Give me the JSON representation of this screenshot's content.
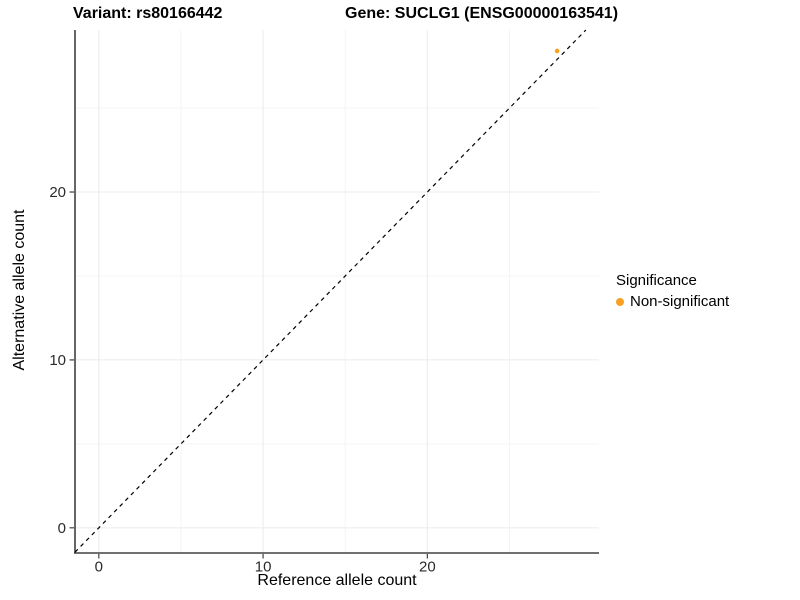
{
  "header": {
    "variant_title": "Variant: rs80166442",
    "gene_title": "Gene: SUCLG1 (ENSG00000163541)"
  },
  "chart_data": {
    "type": "scatter",
    "title": "Variant: rs80166442    Gene: SUCLG1 (ENSG00000163541)",
    "xlabel": "Reference allele count",
    "ylabel": "Alternative allele count",
    "xlim": [
      -1.45,
      30.45
    ],
    "ylim": [
      -1.5,
      29.65
    ],
    "x_ticks": {
      "major": [
        0,
        10,
        20
      ],
      "minor": [
        5,
        15,
        25
      ]
    },
    "y_ticks": {
      "major": [
        0,
        10,
        20
      ],
      "minor": [
        5,
        15,
        25
      ]
    },
    "grid": true,
    "series": [
      {
        "name": "Non-significant",
        "color": "#F8A020",
        "points": [
          {
            "x": 27.9,
            "y": 28.4
          }
        ]
      }
    ],
    "reference_line": {
      "type": "identity",
      "slope": 1,
      "intercept": 0,
      "linetype": "dashed",
      "color": "#000000"
    },
    "legend": {
      "title": "Significance",
      "position": "right",
      "entries": [
        {
          "label": "Non-significant",
          "color": "#F8A020"
        }
      ]
    }
  },
  "colors": {
    "background": "#FFFFFF",
    "grid_major": "#EBEBEB",
    "grid_minor": "#F4F4F4",
    "axis_line": "#404040",
    "tick_text": "#2B2B2B",
    "title_text": "#000000",
    "point_orange": "#F8A020"
  }
}
